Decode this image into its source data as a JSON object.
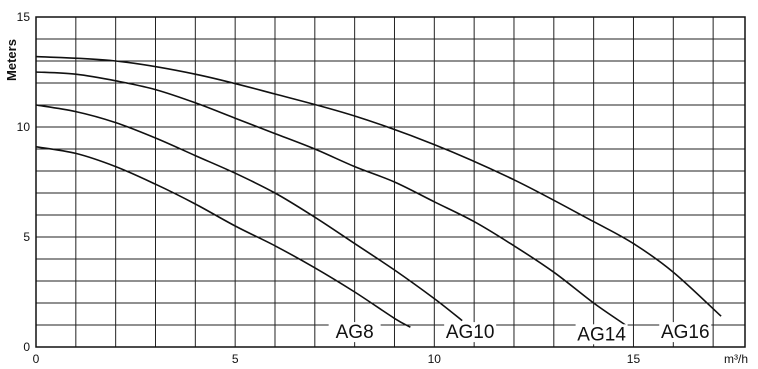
{
  "chart_data": {
    "type": "line",
    "xlabel": "m³/h",
    "ylabel": "Meters",
    "xlim": [
      0,
      17.8
    ],
    "ylim": [
      0,
      15
    ],
    "x_ticks": [
      0,
      5,
      10,
      15
    ],
    "y_ticks": [
      0,
      5,
      10,
      15
    ],
    "grid": true,
    "series": [
      {
        "name": "AG8",
        "points": [
          [
            0,
            9.1
          ],
          [
            1,
            8.8
          ],
          [
            2,
            8.2
          ],
          [
            3,
            7.4
          ],
          [
            4,
            6.5
          ],
          [
            5,
            5.5
          ],
          [
            6,
            4.6
          ],
          [
            7,
            3.6
          ],
          [
            8,
            2.5
          ],
          [
            9,
            1.3
          ],
          [
            9.4,
            0.9
          ]
        ]
      },
      {
        "name": "AG10",
        "points": [
          [
            0,
            11.0
          ],
          [
            1,
            10.7
          ],
          [
            2,
            10.2
          ],
          [
            3,
            9.5
          ],
          [
            4,
            8.7
          ],
          [
            5,
            7.9
          ],
          [
            6,
            7.0
          ],
          [
            7,
            5.9
          ],
          [
            8,
            4.7
          ],
          [
            9,
            3.5
          ],
          [
            10,
            2.2
          ],
          [
            10.7,
            1.2
          ]
        ]
      },
      {
        "name": "AG14",
        "points": [
          [
            0,
            12.5
          ],
          [
            1,
            12.4
          ],
          [
            2,
            12.1
          ],
          [
            3,
            11.7
          ],
          [
            4,
            11.1
          ],
          [
            5,
            10.4
          ],
          [
            6,
            9.7
          ],
          [
            7,
            9.0
          ],
          [
            8,
            8.2
          ],
          [
            9,
            7.5
          ],
          [
            10,
            6.6
          ],
          [
            11,
            5.7
          ],
          [
            12,
            4.6
          ],
          [
            13,
            3.4
          ],
          [
            14,
            2.0
          ],
          [
            14.8,
            1.0
          ]
        ]
      },
      {
        "name": "AG16",
        "points": [
          [
            0,
            13.2
          ],
          [
            2,
            13.0
          ],
          [
            4,
            12.4
          ],
          [
            6,
            11.5
          ],
          [
            8,
            10.5
          ],
          [
            10,
            9.2
          ],
          [
            12,
            7.6
          ],
          [
            14,
            5.7
          ],
          [
            15,
            4.7
          ],
          [
            16,
            3.4
          ],
          [
            17.2,
            1.4
          ]
        ]
      }
    ]
  }
}
